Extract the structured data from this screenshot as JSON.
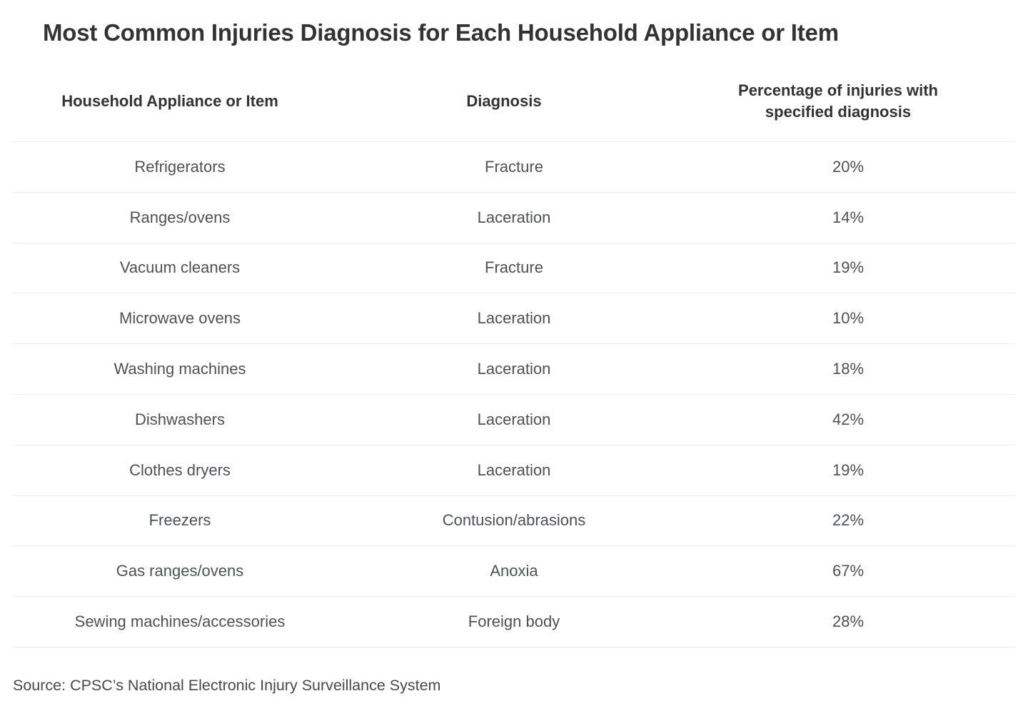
{
  "title": "Most Common Injuries Diagnosis for Each Household Appliance or Item",
  "source_note": "Source: CPSC’s National Electronic Injury Surveillance System",
  "colors": {
    "background": "#ffffff",
    "title_text": "#333333",
    "header_text": "#333333",
    "body_text": "#4f5154",
    "divider": "#ececec",
    "source_text": "#494949"
  },
  "chart_data": {
    "type": "table",
    "title": "Most Common Injuries Diagnosis for Each Household Appliance or Item",
    "columns": [
      "Household Appliance or Item",
      "Diagnosis",
      "Percentage of injuries with specified diagnosis"
    ],
    "rows": [
      {
        "appliance": "Refrigerators",
        "diagnosis": "Fracture",
        "percentage": "20%",
        "percentage_value": 20
      },
      {
        "appliance": "Ranges/ovens",
        "diagnosis": "Laceration",
        "percentage": "14%",
        "percentage_value": 14
      },
      {
        "appliance": "Vacuum cleaners",
        "diagnosis": "Fracture",
        "percentage": "19%",
        "percentage_value": 19
      },
      {
        "appliance": "Microwave ovens",
        "diagnosis": "Laceration",
        "percentage": "10%",
        "percentage_value": 10
      },
      {
        "appliance": "Washing machines",
        "diagnosis": "Laceration",
        "percentage": "18%",
        "percentage_value": 18
      },
      {
        "appliance": "Dishwashers",
        "diagnosis": "Laceration",
        "percentage": "42%",
        "percentage_value": 42
      },
      {
        "appliance": "Clothes dryers",
        "diagnosis": "Laceration",
        "percentage": "19%",
        "percentage_value": 19
      },
      {
        "appliance": "Freezers",
        "diagnosis": "Contusion/abrasions",
        "percentage": "22%",
        "percentage_value": 22
      },
      {
        "appliance": "Gas ranges/ovens",
        "diagnosis": "Anoxia",
        "percentage": "67%",
        "percentage_value": 67
      },
      {
        "appliance": "Sewing machines/accessories",
        "diagnosis": "Foreign body",
        "percentage": "28%",
        "percentage_value": 28
      }
    ]
  }
}
